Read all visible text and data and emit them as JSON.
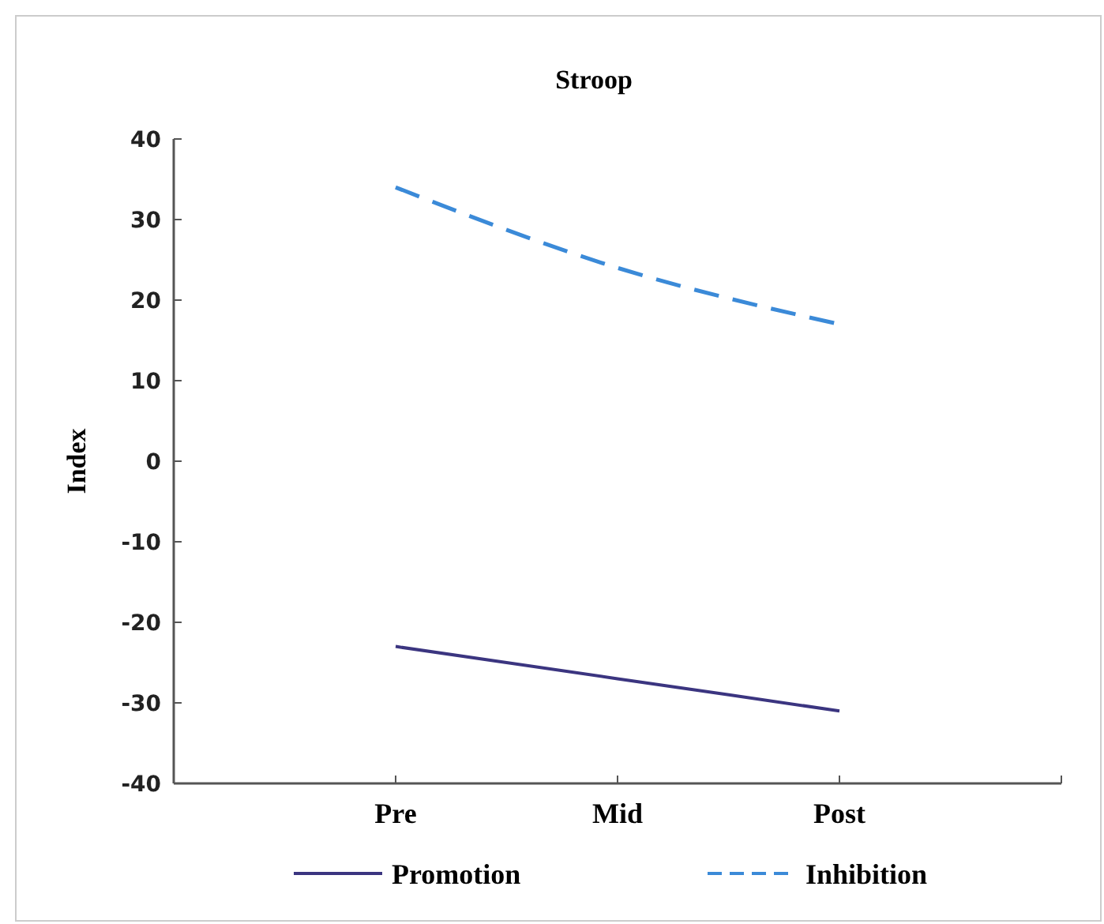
{
  "chart_data": {
    "type": "line",
    "title": "Stroop",
    "ylabel": "Index",
    "categories": [
      "Pre",
      "Mid",
      "Post"
    ],
    "series": [
      {
        "name": "Promotion",
        "color": "#3b3580",
        "values": [
          -23,
          -27,
          -31
        ],
        "line_style": "solid"
      },
      {
        "name": "Inhibition",
        "color": "#3b8ad8",
        "values": [
          34,
          24,
          17
        ],
        "line_style": "dashed"
      }
    ],
    "ylim": [
      -40,
      40
    ],
    "yticks": [
      -40,
      -30,
      -20,
      -10,
      0,
      10,
      20,
      30,
      40
    ],
    "grid": false,
    "legend": "bottom",
    "marker": "none"
  }
}
